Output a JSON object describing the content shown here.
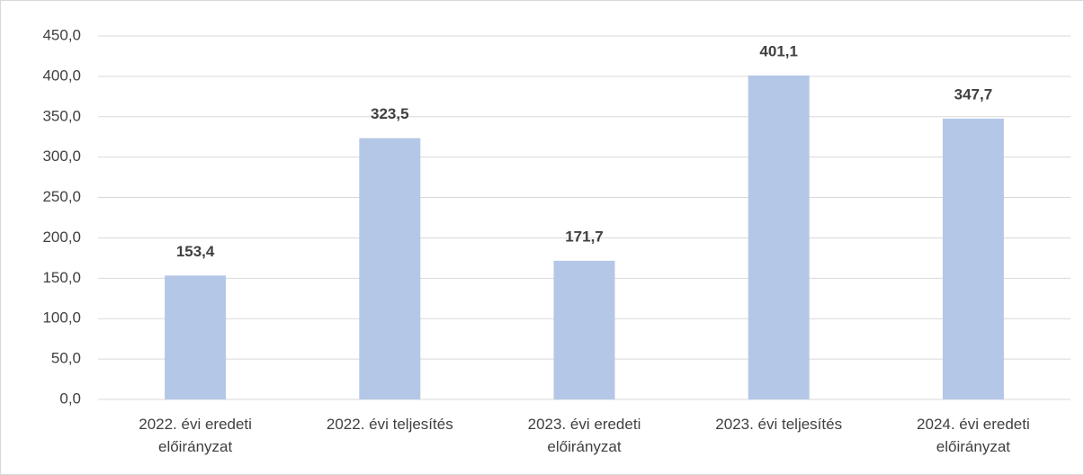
{
  "chart_data": {
    "type": "bar",
    "categories": [
      "2022. évi eredeti előirányzat",
      "2022. évi teljesítés",
      "2023. évi eredeti előirányzat",
      "2023. évi teljesítés",
      "2024. évi eredeti előirányzat"
    ],
    "values": [
      153.4,
      323.5,
      171.7,
      401.1,
      347.7
    ],
    "value_labels": [
      "153,4",
      "323,5",
      "171,7",
      "401,1",
      "347,7"
    ],
    "color": "#b4c7e7",
    "ylim": [
      0,
      450
    ],
    "yticks": [
      {
        "value": 0,
        "label": "0,0"
      },
      {
        "value": 50,
        "label": "50,0"
      },
      {
        "value": 100,
        "label": "100,0"
      },
      {
        "value": 150,
        "label": "150,0"
      },
      {
        "value": 200,
        "label": "200,0"
      },
      {
        "value": 250,
        "label": "250,0"
      },
      {
        "value": 300,
        "label": "300,0"
      },
      {
        "value": 350,
        "label": "350,0"
      },
      {
        "value": 400,
        "label": "400,0"
      },
      {
        "value": 450,
        "label": "450,0"
      }
    ],
    "grid": true
  }
}
